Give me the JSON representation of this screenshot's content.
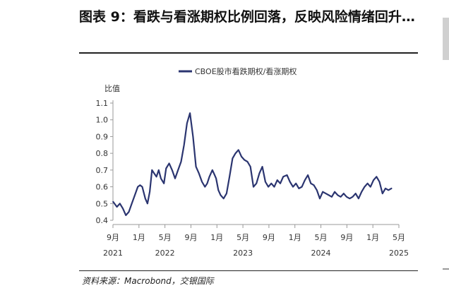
{
  "figure": {
    "title": "图表 9：看跌与看涨期权比例回落，反映风险情绪回升…",
    "source": "资料来源：Macrobond，交银国际"
  },
  "chart_data": {
    "type": "line",
    "title": "",
    "xlabel": "",
    "ylabel": "比值",
    "ylim": [
      0.4,
      1.1
    ],
    "yticks": [
      "0.4",
      "0.5",
      "0.6",
      "0.7",
      "0.8",
      "0.9",
      "1.0",
      "1.1"
    ],
    "xlim": [
      2021.667,
      2025.5
    ],
    "xtick_labels": [
      {
        "month": "9月",
        "year": "2021"
      },
      {
        "month": "1月",
        "year": ""
      },
      {
        "month": "5月",
        "year": "2022"
      },
      {
        "month": "9月",
        "year": ""
      },
      {
        "month": "1月",
        "year": ""
      },
      {
        "month": "5月",
        "year": "2023"
      },
      {
        "month": "9月",
        "year": ""
      },
      {
        "month": "1月",
        "year": ""
      },
      {
        "month": "5月",
        "year": "2024"
      },
      {
        "month": "9月",
        "year": ""
      },
      {
        "month": "1月",
        "year": ""
      },
      {
        "month": "5月",
        "year": "2025"
      }
    ],
    "legend_position": "top-center",
    "grid": false,
    "series": [
      {
        "name": "CBOE股市看跌期权/看涨期权",
        "color": "#2b3570",
        "x": [
          2021.67,
          2021.72,
          2021.76,
          2021.8,
          2021.84,
          2021.88,
          2021.92,
          2021.96,
          2022.0,
          2022.03,
          2022.06,
          2022.1,
          2022.13,
          2022.16,
          2022.19,
          2022.22,
          2022.25,
          2022.28,
          2022.31,
          2022.35,
          2022.38,
          2022.42,
          2022.46,
          2022.5,
          2022.54,
          2022.58,
          2022.62,
          2022.66,
          2022.7,
          2022.74,
          2022.78,
          2022.82,
          2022.86,
          2022.9,
          2022.93,
          2022.96,
          2023.0,
          2023.02,
          2023.05,
          2023.08,
          2023.11,
          2023.15,
          2023.19,
          2023.23,
          2023.27,
          2023.31,
          2023.35,
          2023.39,
          2023.43,
          2023.47,
          2023.51,
          2023.55,
          2023.59,
          2023.63,
          2023.67,
          2023.71,
          2023.75,
          2023.79,
          2023.83,
          2023.87,
          2023.91,
          2023.95,
          2024.0,
          2024.04,
          2024.08,
          2024.12,
          2024.16,
          2024.2,
          2024.24,
          2024.28,
          2024.32,
          2024.36,
          2024.4,
          2024.44,
          2024.48,
          2024.52,
          2024.56,
          2024.6,
          2024.64,
          2024.68,
          2024.72,
          2024.76,
          2024.8,
          2024.84,
          2024.88,
          2024.92,
          2024.96,
          2025.0,
          2025.04,
          2025.08,
          2025.12,
          2025.16,
          2025.2,
          2025.24,
          2025.28,
          2025.32,
          2025.36,
          2025.4
        ],
        "y": [
          0.51,
          0.48,
          0.5,
          0.47,
          0.43,
          0.45,
          0.5,
          0.55,
          0.6,
          0.61,
          0.6,
          0.53,
          0.5,
          0.57,
          0.7,
          0.68,
          0.66,
          0.7,
          0.65,
          0.62,
          0.71,
          0.74,
          0.7,
          0.65,
          0.7,
          0.75,
          0.85,
          0.98,
          1.04,
          0.9,
          0.72,
          0.68,
          0.63,
          0.6,
          0.62,
          0.66,
          0.7,
          0.68,
          0.65,
          0.58,
          0.55,
          0.53,
          0.56,
          0.66,
          0.77,
          0.8,
          0.82,
          0.78,
          0.76,
          0.75,
          0.72,
          0.6,
          0.62,
          0.68,
          0.72,
          0.63,
          0.6,
          0.62,
          0.6,
          0.64,
          0.62,
          0.66,
          0.67,
          0.63,
          0.6,
          0.62,
          0.59,
          0.6,
          0.64,
          0.67,
          0.62,
          0.61,
          0.58,
          0.53,
          0.57,
          0.56,
          0.55,
          0.54,
          0.57,
          0.55,
          0.54,
          0.56,
          0.54,
          0.53,
          0.54,
          0.56,
          0.53,
          0.57,
          0.6,
          0.62,
          0.6,
          0.64,
          0.66,
          0.63,
          0.56,
          0.59,
          0.58,
          0.59
        ]
      }
    ]
  }
}
